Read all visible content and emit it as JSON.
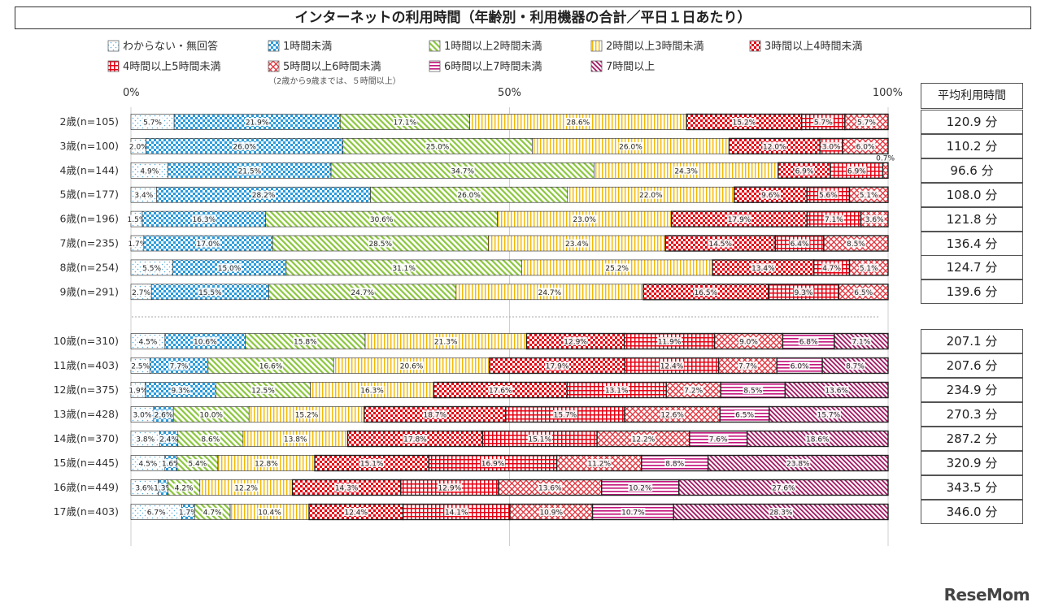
{
  "chart_data": {
    "type": "bar",
    "orientation": "horizontal-stacked-percent",
    "title": "インターネットの利用時間（年齢別・利用機器の合計／平日１日あたり）",
    "xlim": [
      0,
      100
    ],
    "x_ticks": [
      "0%",
      "50%",
      "100%"
    ],
    "categories": [
      "2歳(n=105)",
      "3歳(n=100)",
      "4歳(n=144)",
      "5歳(n=177)",
      "6歳(n=196)",
      "7歳(n=235)",
      "8歳(n=254)",
      "9歳(n=291)",
      "10歳(n=310)",
      "11歳(n=403)",
      "12歳(n=375)",
      "13歳(n=428)",
      "14歳(n=370)",
      "15歳(n=445)",
      "16歳(n=449)",
      "17歳(n=403)"
    ],
    "series": [
      {
        "name": "わからない・無回答",
        "pattern": "dots",
        "color": "#5aaee0",
        "values": [
          5.7,
          2.0,
          4.9,
          3.4,
          1.5,
          1.7,
          5.5,
          2.7,
          4.5,
          2.5,
          1.9,
          3.0,
          3.8,
          4.5,
          3.6,
          6.7
        ]
      },
      {
        "name": "1時間未満",
        "pattern": "checker",
        "color": "#2a9bdc",
        "values": [
          21.9,
          26.0,
          21.5,
          28.2,
          16.3,
          17.0,
          15.0,
          15.5,
          10.6,
          7.7,
          9.3,
          2.6,
          2.4,
          1.6,
          1.3,
          1.7
        ]
      },
      {
        "name": "1時間以上2時間未満",
        "pattern": "diagonal",
        "color": "#8cc63f",
        "values": [
          17.1,
          25.0,
          34.7,
          26.0,
          30.6,
          28.5,
          31.1,
          24.7,
          15.8,
          16.6,
          12.5,
          10.0,
          8.6,
          5.4,
          4.2,
          4.7
        ]
      },
      {
        "name": "2時間以上3時間未満",
        "pattern": "vertical",
        "color": "#f5b800",
        "values": [
          28.6,
          26.0,
          24.3,
          22.0,
          23.0,
          23.4,
          25.2,
          24.7,
          21.3,
          20.6,
          16.3,
          15.2,
          13.8,
          12.8,
          12.2,
          10.4
        ]
      },
      {
        "name": "3時間以上4時間未満",
        "pattern": "checker",
        "color": "#e60012",
        "values": [
          15.2,
          12.0,
          6.9,
          9.6,
          17.9,
          14.5,
          13.4,
          16.5,
          12.9,
          17.9,
          17.6,
          18.7,
          17.8,
          15.1,
          14.3,
          12.4
        ]
      },
      {
        "name": "4時間以上5時間未満",
        "pattern": "grid",
        "color": "#e60012",
        "values": [
          5.7,
          3.0,
          6.9,
          5.6,
          7.1,
          6.4,
          4.7,
          9.3,
          11.9,
          12.4,
          13.1,
          15.7,
          15.1,
          16.9,
          12.9,
          14.1
        ]
      },
      {
        "name": "5時間以上6時間未満",
        "pattern": "crosshatch",
        "color": "#e0303a",
        "values": [
          5.7,
          6.0,
          0.7,
          5.1,
          3.6,
          8.5,
          5.1,
          6.5,
          9.0,
          7.7,
          7.2,
          12.6,
          12.2,
          11.2,
          13.6,
          10.9
        ]
      },
      {
        "name": "6時間以上7時間未満",
        "pattern": "horizontal",
        "color": "#c2127a",
        "values": [
          null,
          null,
          null,
          null,
          null,
          null,
          null,
          null,
          6.8,
          6.0,
          8.5,
          6.5,
          7.6,
          8.8,
          10.2,
          10.7
        ]
      },
      {
        "name": "7時間以上",
        "pattern": "diagonal-dense",
        "color": "#a0135f",
        "values": [
          null,
          null,
          null,
          null,
          null,
          null,
          null,
          null,
          7.1,
          8.7,
          13.6,
          15.7,
          18.6,
          23.8,
          27.6,
          28.3
        ]
      }
    ],
    "legend_note": "（2歳から9歳までは、５時間以上）",
    "legend_position": "top",
    "avg_header": "平均利用時間",
    "avg_values": [
      "120.9 分",
      "110.2 分",
      "96.6 分",
      "108.0 分",
      "121.8 分",
      "136.4 分",
      "124.7 分",
      "139.6 分",
      "207.1 分",
      "207.6 分",
      "234.9 分",
      "270.3 分",
      "287.2 分",
      "320.9 分",
      "343.5 分",
      "346.0 分"
    ]
  },
  "watermark": "ReseMom"
}
